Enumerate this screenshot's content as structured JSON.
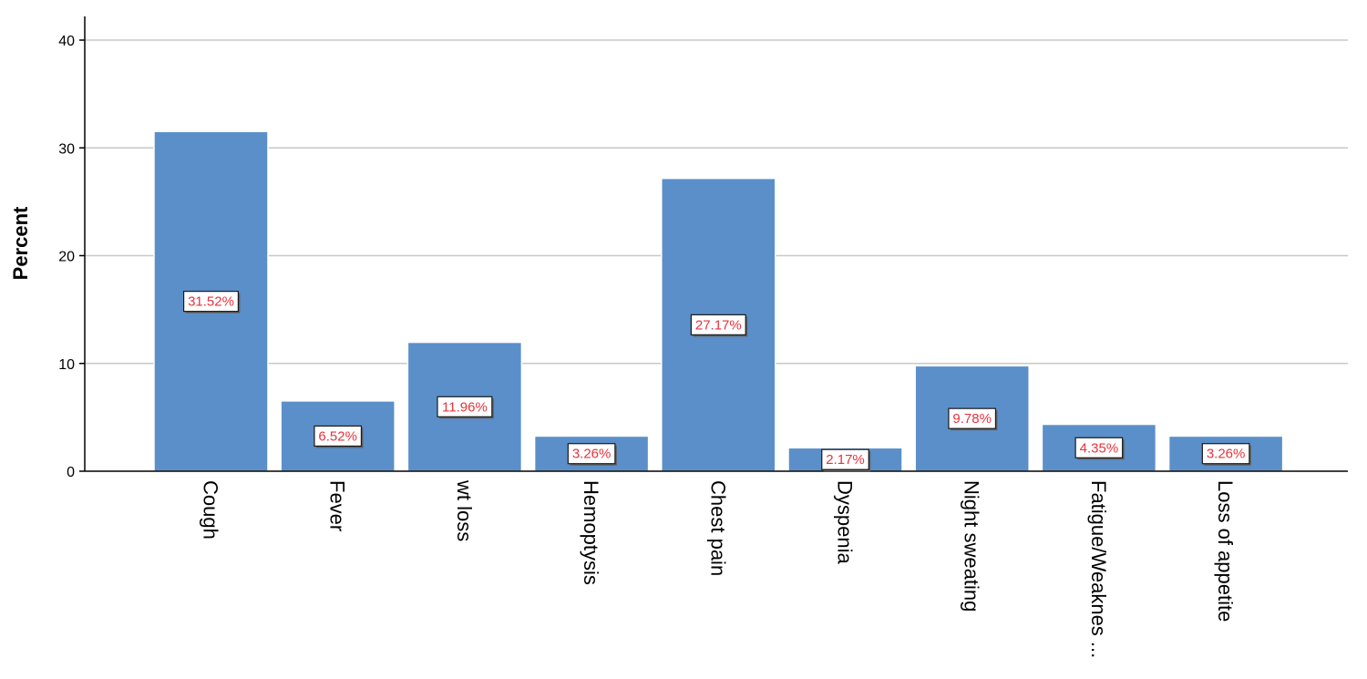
{
  "chart_data": {
    "type": "bar",
    "title": "",
    "xlabel": "",
    "ylabel": "Percent",
    "ylim": [
      0,
      40
    ],
    "yticks": [
      0,
      10,
      20,
      30,
      40
    ],
    "grid": true,
    "categories": [
      "Cough",
      "Fever",
      "wt loss",
      "Hemoptysis",
      "Chest pain",
      "Dyspenia",
      "Night sweating",
      "Fatigue/Weaknes ...",
      "Loss of appetite"
    ],
    "values": [
      31.52,
      6.52,
      11.96,
      3.26,
      27.17,
      2.17,
      9.78,
      4.35,
      3.26
    ],
    "data_labels": [
      "31.52%",
      "6.52%",
      "11.96%",
      "3.26%",
      "27.17%",
      "2.17%",
      "9.78%",
      "4.35%",
      "3.26%"
    ],
    "colors": {
      "bar_fill": "#5b8fc9",
      "bar_edge": "#ffffff",
      "label_text": "#e8323c",
      "grid": "#c8c8c8"
    }
  }
}
